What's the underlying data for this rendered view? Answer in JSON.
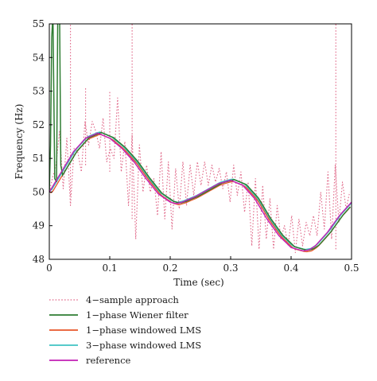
{
  "chart_data": {
    "type": "line",
    "title": "",
    "xlabel": "Time (sec)",
    "ylabel": "Frequency (Hz)",
    "xlim": [
      0,
      0.5
    ],
    "ylim": [
      48,
      55
    ],
    "xticks": [
      "0",
      "0.1",
      "0.2",
      "0.3",
      "0.4",
      "0.5"
    ],
    "yticks": [
      "48",
      "49",
      "50",
      "51",
      "52",
      "53",
      "54",
      "55"
    ],
    "grid": false,
    "legend_position": "below plot",
    "series": [
      {
        "name": "4−sample approach",
        "color": "#e06a8a",
        "style": "dotted-pink",
        "x": [
          0.005,
          0.011,
          0.017,
          0.023,
          0.029,
          0.035,
          0.041,
          0.047,
          0.053,
          0.059,
          0.065,
          0.071,
          0.077,
          0.083,
          0.089,
          0.095,
          0.101,
          0.107,
          0.113,
          0.119,
          0.125,
          0.131,
          0.137,
          0.143,
          0.149,
          0.155,
          0.161,
          0.167,
          0.173,
          0.179,
          0.185,
          0.191,
          0.197,
          0.203,
          0.209,
          0.215,
          0.221,
          0.227,
          0.233,
          0.239,
          0.245,
          0.251,
          0.257,
          0.263,
          0.269,
          0.275,
          0.281,
          0.287,
          0.293,
          0.299,
          0.305,
          0.311,
          0.317,
          0.323,
          0.329,
          0.335,
          0.341,
          0.347,
          0.353,
          0.359,
          0.365,
          0.371,
          0.377,
          0.383,
          0.389,
          0.395,
          0.401,
          0.407,
          0.413,
          0.419,
          0.425,
          0.431,
          0.437,
          0.443,
          0.449,
          0.455,
          0.461,
          0.467,
          0.473,
          0.479,
          0.485,
          0.491,
          0.497
        ],
        "y": [
          50.4,
          50.8,
          51.8,
          50.1,
          51.6,
          49.6,
          51.3,
          51.2,
          50.6,
          52.1,
          51.4,
          52.1,
          51.8,
          51.3,
          52.2,
          50.9,
          51.3,
          51.0,
          52.8,
          50.6,
          51.5,
          49.6,
          51.7,
          48.6,
          51.4,
          50.0,
          50.8,
          50.0,
          50.4,
          49.3,
          51.2,
          49.2,
          50.9,
          48.9,
          50.7,
          49.5,
          50.9,
          49.6,
          50.8,
          49.9,
          50.9,
          50.2,
          50.9,
          50.2,
          50.8,
          50.3,
          50.7,
          50.1,
          50.6,
          49.7,
          50.8,
          49.9,
          50.6,
          49.4,
          50.3,
          48.4,
          50.4,
          48.3,
          50.2,
          48.6,
          49.8,
          48.3,
          49.6,
          48.6,
          49.0,
          48.4,
          49.3,
          48.2,
          49.2,
          48.4,
          49.1,
          48.7,
          49.3,
          48.7,
          50.0,
          48.9,
          50.6,
          48.6,
          50.8,
          49.1,
          50.3,
          49.5,
          50.0
        ]
      },
      {
        "name": "1−phase Wiener filter",
        "color": "#2e7d32",
        "style": "solid"
      },
      {
        "name": "1−phase windowed LMS",
        "color": "#e8562a",
        "style": "solid"
      },
      {
        "name": "3−phase windowed LMS",
        "color": "#3fc3c3",
        "style": "solid"
      },
      {
        "name": "reference",
        "color": "#c21fb4",
        "style": "solid",
        "x": [
          0,
          0.02,
          0.04,
          0.06,
          0.08,
          0.1,
          0.12,
          0.14,
          0.16,
          0.18,
          0.2,
          0.21,
          0.22,
          0.24,
          0.26,
          0.28,
          0.3,
          0.32,
          0.34,
          0.36,
          0.38,
          0.4,
          0.42,
          0.43,
          0.44,
          0.46,
          0.48,
          0.5
        ],
        "y": [
          50.0,
          50.6,
          51.2,
          51.6,
          51.75,
          51.6,
          51.3,
          50.9,
          50.4,
          49.95,
          49.7,
          49.65,
          49.7,
          49.85,
          50.05,
          50.25,
          50.35,
          50.2,
          49.8,
          49.2,
          48.7,
          48.35,
          48.25,
          48.28,
          48.4,
          48.8,
          49.3,
          49.7
        ]
      }
    ]
  }
}
